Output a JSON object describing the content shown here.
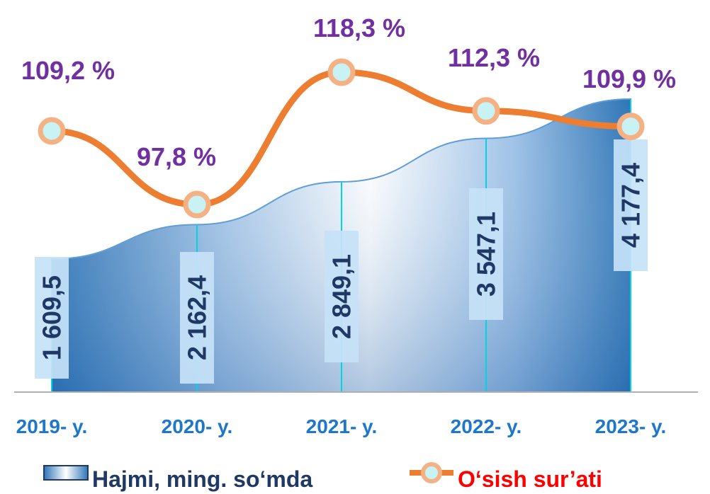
{
  "chart_data": {
    "type": "area+line",
    "categories": [
      "2019- y.",
      "2020- y.",
      "2021- y.",
      "2022- y.",
      "2023- y."
    ],
    "series": [
      {
        "name": "Hajmi, ming. so‘mda",
        "type": "area",
        "values": [
          1609.5,
          2162.4,
          2849.1,
          3547.1,
          4177.4
        ],
        "labels": [
          "1 609,5",
          "2 162,4",
          "2 849,1",
          "3 547,1",
          "4 177,4"
        ]
      },
      {
        "name": "O‘sish sur’ati",
        "type": "line",
        "values": [
          109.2,
          97.8,
          118.3,
          112.3,
          109.9
        ],
        "labels": [
          "109,2 %",
          "97,8 %",
          "118,3 %",
          "112,3 %",
          "109,9 %"
        ]
      }
    ],
    "legend": "bottom",
    "grid": false,
    "colors": {
      "area_dark": "#2e75b6",
      "area_light": "#ffffff",
      "line": "#ed7d31",
      "marker_fill": "#c9f2f5",
      "marker_stroke": "#f4b183",
      "rate_label": "#7030a0",
      "volume_label": "#1f3864",
      "category_label": "#1f77c9",
      "dropline": "#00d5e6"
    }
  }
}
